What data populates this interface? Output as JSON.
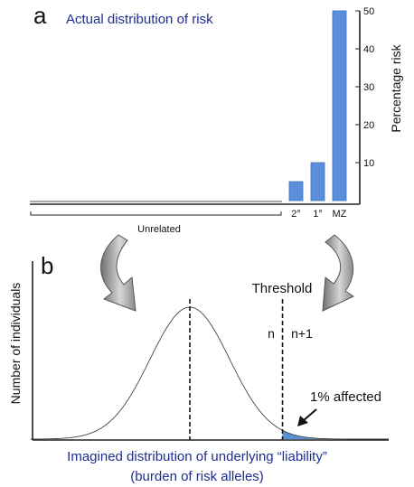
{
  "chart_data": [
    {
      "panel": "a",
      "type": "bar",
      "title": "Actual distribution of risk",
      "ylabel": "Percentage risk",
      "ylim": [
        0,
        50
      ],
      "yticks": [
        10,
        20,
        30,
        40,
        50
      ],
      "categories": [
        "Unrelated",
        "2°",
        "1°",
        "MZ"
      ],
      "values": [
        0.3,
        5,
        10,
        50
      ],
      "bar_color": "#5b8fd9"
    },
    {
      "panel": "b",
      "type": "area",
      "ylabel": "Number of individuals",
      "xlabel_line1": "Imagined distribution of underlying “liability”",
      "xlabel_line2": "(burden of risk alleles)",
      "mean_sd": 0,
      "threshold_sd": 2.33,
      "threshold_label": "Threshold",
      "left_of_threshold_label": "n",
      "right_of_threshold_label": "n+1",
      "affected_label": "1% affected",
      "affected_color": "#5b8fd9"
    }
  ]
}
